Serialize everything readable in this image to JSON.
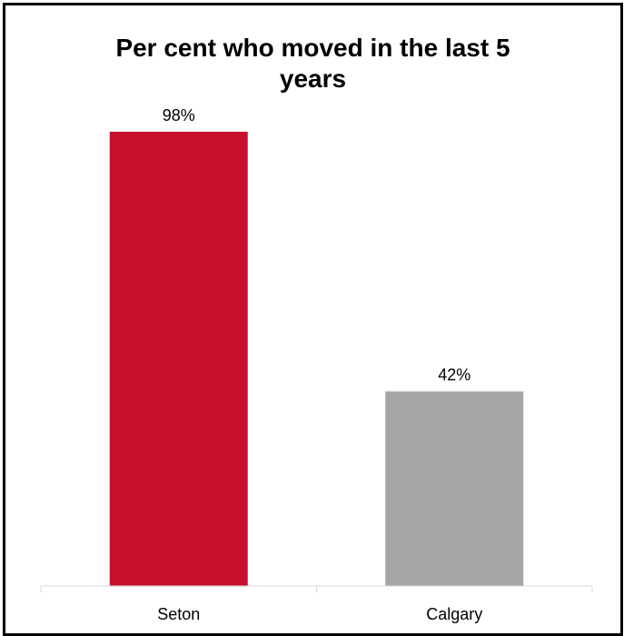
{
  "chart_data": {
    "type": "bar",
    "title_lines": [
      "Per cent who moved in the last 5",
      "years"
    ],
    "categories": [
      "Seton",
      "Calgary"
    ],
    "values": [
      98,
      42
    ],
    "data_labels": [
      "98%",
      "42%"
    ],
    "colors": [
      "#C8102E",
      "#A6A6A6"
    ],
    "ylim": [
      0,
      100
    ],
    "grid": false,
    "legend": "none"
  }
}
